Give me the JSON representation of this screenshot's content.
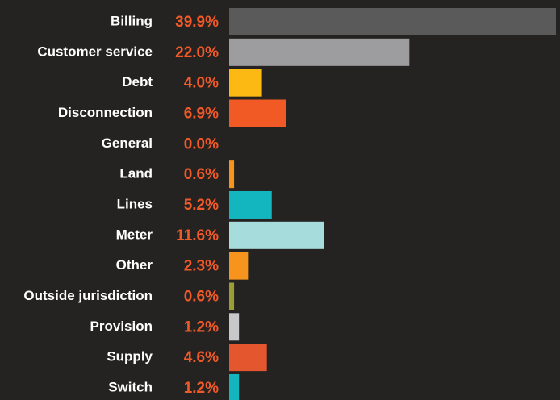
{
  "chart_data": {
    "type": "bar",
    "orientation": "horizontal",
    "categories": [
      "Billing",
      "Customer service",
      "Debt",
      "Disconnection",
      "General",
      "Land",
      "Lines",
      "Meter",
      "Other",
      "Outside jurisdiction",
      "Provision",
      "Supply",
      "Switch"
    ],
    "values": [
      39.9,
      22.0,
      4.0,
      6.9,
      0.0,
      0.6,
      5.2,
      11.6,
      2.3,
      0.6,
      1.2,
      4.6,
      1.2
    ],
    "value_labels": [
      "39.9%",
      "22.0%",
      "4.0%",
      "6.9%",
      "0.0%",
      "0.6%",
      "5.2%",
      "11.6%",
      "2.3%",
      "0.6%",
      "1.2%",
      "4.6%",
      "1.2%"
    ],
    "colors": [
      "#5a5a5b",
      "#9d9c9f",
      "#fdb913",
      "#f15a24",
      "#f15a24",
      "#f7941d",
      "#13b5bf",
      "#a6dcdb",
      "#f7941d",
      "#9a9f35",
      "#c7c8ca",
      "#e4572e",
      "#13b5bf"
    ],
    "xlim": [
      0,
      40
    ]
  }
}
